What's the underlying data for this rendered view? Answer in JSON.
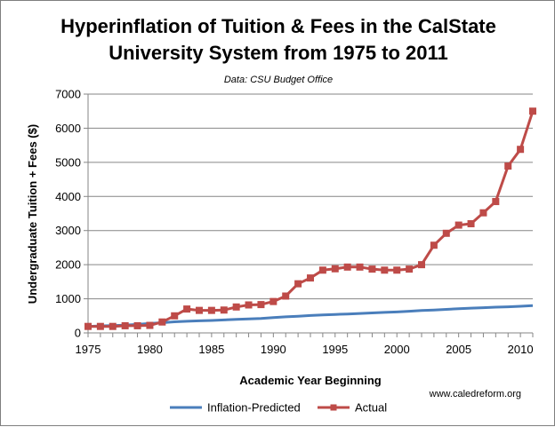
{
  "chart_data": {
    "type": "line",
    "title_line1": "Hyperinflation of Tuition & Fees in the CalState",
    "title_line2": "University System from 1975 to 2011",
    "subtitle": "Data:  CSU Budget Office",
    "xlabel": "Academic Year Beginning",
    "ylabel": "Undergraduate  Tuition + Fees ($)",
    "xlim": [
      1975,
      2011
    ],
    "ylim": [
      0,
      7000
    ],
    "xticks": [
      1975,
      1980,
      1985,
      1990,
      1995,
      2000,
      2005,
      2010
    ],
    "yticks": [
      0,
      1000,
      2000,
      3000,
      4000,
      5000,
      6000,
      7000
    ],
    "grid": "horizontal",
    "legend_position": "bottom",
    "credit": "www.caledreform.org",
    "x": [
      1975,
      1976,
      1977,
      1978,
      1979,
      1980,
      1981,
      1982,
      1983,
      1984,
      1985,
      1986,
      1987,
      1988,
      1989,
      1990,
      1991,
      1992,
      1993,
      1994,
      1995,
      1996,
      1997,
      1998,
      1999,
      2000,
      2001,
      2002,
      2003,
      2004,
      2005,
      2006,
      2007,
      2008,
      2009,
      2010,
      2011
    ],
    "series": [
      {
        "name": "Inflation-Predicted",
        "color": "#4a7ebb",
        "marker": "none",
        "values": [
          190,
          205,
          215,
          230,
          250,
          275,
          300,
          325,
          340,
          355,
          365,
          380,
          395,
          410,
          425,
          450,
          470,
          490,
          510,
          525,
          540,
          555,
          570,
          585,
          600,
          615,
          635,
          655,
          670,
          690,
          710,
          725,
          740,
          755,
          765,
          780,
          800
        ]
      },
      {
        "name": "Actual",
        "color": "#be4b48",
        "marker": "square",
        "values": [
          190,
          190,
          190,
          210,
          210,
          220,
          320,
          500,
          700,
          660,
          660,
          670,
          760,
          820,
          830,
          920,
          1080,
          1440,
          1610,
          1840,
          1880,
          1930,
          1930,
          1870,
          1840,
          1840,
          1870,
          2000,
          2570,
          2920,
          3160,
          3200,
          3520,
          3850,
          4890,
          5380,
          6500
        ]
      }
    ]
  }
}
